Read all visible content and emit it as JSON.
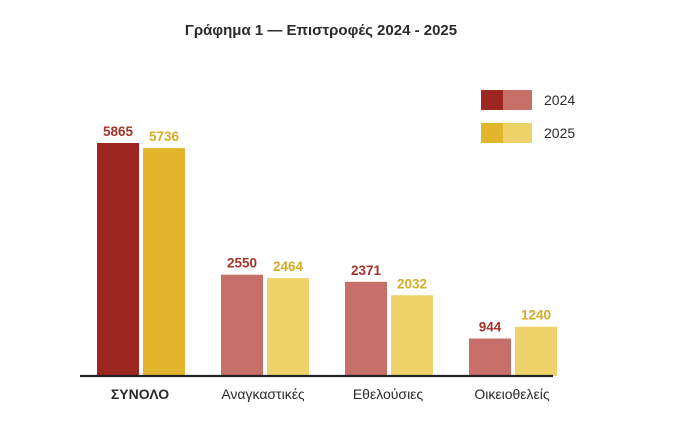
{
  "chart_data": {
    "type": "bar",
    "title": "Γράφημα 1 — Επιστροφές 2024 - 2025",
    "categories": [
      "ΣΥΝΟΛΟ",
      "Αναγκαστικές",
      "Εθελούσιες",
      "Οικειοθελείς"
    ],
    "series": [
      {
        "name": "2024",
        "values": [
          5865,
          2550,
          2371,
          944
        ]
      },
      {
        "name": "2025",
        "values": [
          5736,
          2464,
          2032,
          1240
        ]
      }
    ],
    "ylim": [
      0,
      6500
    ],
    "grid": false,
    "legend_position": "top-right",
    "colors": {
      "2024_strong": "#9e2620",
      "2024_light": "#c7706a",
      "2025_strong": "#e2b52d",
      "2025_light": "#eed36a",
      "label_2024": "#a6332b",
      "label_2025": "#d8ab24",
      "axis": "#222222"
    },
    "highlight_category": "ΣΥΝΟΛΟ"
  }
}
